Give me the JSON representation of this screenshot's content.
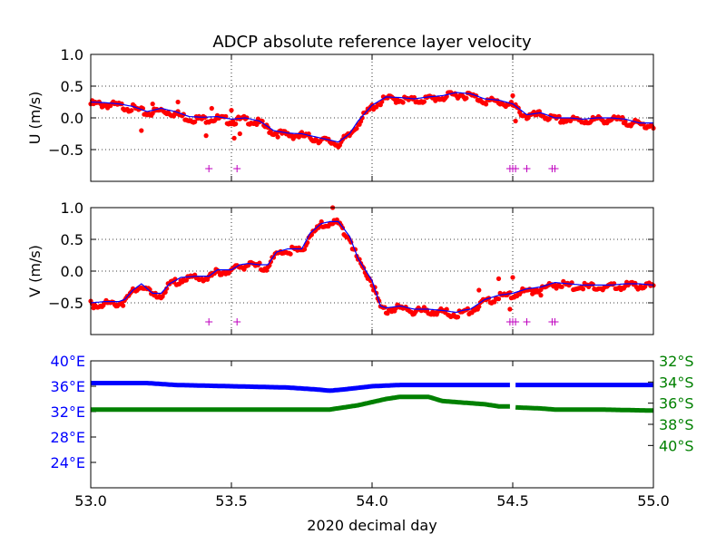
{
  "chart_data": {
    "type": "line",
    "title": "ADCP absolute reference layer velocity",
    "xlabel": "2020 decimal day",
    "xlim": [
      53.0,
      55.0
    ],
    "xticks": [
      53.0,
      53.5,
      54.0,
      54.5,
      55.0
    ],
    "xtick_labels": [
      "53.0",
      "53.5",
      "54.0",
      "54.5",
      "55.0"
    ],
    "vlines": [
      53.5,
      54.0,
      54.5
    ],
    "grid": "dotted",
    "colors": {
      "dots": "#ff0000",
      "line": "#0000ff",
      "flags": "#bf00bf",
      "lon": "#0000ff",
      "lat": "#008000"
    },
    "panels": [
      {
        "ylabel": "U (m/s)",
        "ylim": [
          -1.0,
          1.0
        ],
        "yticks": [
          1.0,
          0.5,
          0.0,
          -0.5
        ],
        "ytick_labels": [
          "1.0",
          "0.5",
          "0.0",
          "−0.5"
        ],
        "series": [
          {
            "x": [
              53.0,
              53.05,
              53.1,
              53.15,
              53.2,
              53.25,
              53.3,
              53.35,
              53.4,
              53.45,
              53.5,
              53.55,
              53.6,
              53.65,
              53.7,
              53.75,
              53.8,
              53.85,
              53.88,
              53.92,
              53.95,
              54.0,
              54.05,
              54.1,
              54.15,
              54.2,
              54.25,
              54.3,
              54.35,
              54.4,
              54.45,
              54.5,
              54.55,
              54.6,
              54.65,
              54.7,
              54.75,
              54.8,
              54.85,
              54.9,
              54.95,
              55.0
            ],
            "y": [
              0.25,
              0.24,
              0.22,
              0.18,
              0.1,
              0.15,
              0.1,
              0.02,
              0.01,
              0.02,
              -0.02,
              0.0,
              -0.05,
              -0.2,
              -0.24,
              -0.25,
              -0.3,
              -0.35,
              -0.38,
              -0.25,
              -0.05,
              0.2,
              0.33,
              0.32,
              0.3,
              0.33,
              0.35,
              0.4,
              0.38,
              0.3,
              0.28,
              0.22,
              0.05,
              0.08,
              0.0,
              0.0,
              -0.02,
              0.0,
              0.0,
              -0.02,
              -0.08,
              -0.08
            ]
          }
        ],
        "outliers": [
          {
            "x": 53.18,
            "y": -0.2
          },
          {
            "x": 53.22,
            "y": 0.22
          },
          {
            "x": 53.31,
            "y": 0.25
          },
          {
            "x": 53.41,
            "y": -0.28
          },
          {
            "x": 53.43,
            "y": 0.15
          },
          {
            "x": 53.5,
            "y": 0.12
          },
          {
            "x": 53.51,
            "y": -0.32
          },
          {
            "x": 53.53,
            "y": -0.25
          },
          {
            "x": 54.5,
            "y": 0.35
          },
          {
            "x": 54.51,
            "y": -0.05
          }
        ],
        "flags": [
          53.42,
          53.52,
          54.49,
          54.5,
          54.51,
          54.55,
          54.64,
          54.65
        ],
        "flag_y": -0.8
      },
      {
        "ylabel": "V (m/s)",
        "ylim": [
          -1.0,
          1.0
        ],
        "yticks": [
          1.0,
          0.5,
          0.0,
          -0.5
        ],
        "ytick_labels": [
          "1.0",
          "0.5",
          "0.0",
          "−0.5"
        ],
        "series": [
          {
            "x": [
              53.0,
              53.05,
              53.1,
              53.12,
              53.15,
              53.18,
              53.22,
              53.25,
              53.28,
              53.32,
              53.38,
              53.42,
              53.45,
              53.5,
              53.53,
              53.56,
              53.6,
              53.63,
              53.66,
              53.7,
              53.75,
              53.78,
              53.82,
              53.85,
              53.88,
              53.92,
              53.95,
              54.0,
              54.03,
              54.05,
              54.1,
              54.15,
              54.2,
              54.25,
              54.3,
              54.32,
              54.35,
              54.4,
              54.45,
              54.5,
              54.55,
              54.6,
              54.65,
              54.7,
              54.75,
              54.8,
              54.85,
              54.9,
              54.95,
              55.0
            ],
            "y": [
              -0.5,
              -0.48,
              -0.48,
              -0.45,
              -0.3,
              -0.2,
              -0.35,
              -0.35,
              -0.2,
              -0.1,
              -0.08,
              -0.08,
              0.02,
              0.02,
              0.1,
              0.12,
              0.1,
              0.1,
              0.3,
              0.35,
              0.35,
              0.6,
              0.75,
              0.78,
              0.78,
              0.55,
              0.2,
              -0.15,
              -0.55,
              -0.58,
              -0.55,
              -0.6,
              -0.6,
              -0.62,
              -0.65,
              -0.62,
              -0.6,
              -0.45,
              -0.38,
              -0.35,
              -0.28,
              -0.25,
              -0.18,
              -0.2,
              -0.22,
              -0.22,
              -0.22,
              -0.2,
              -0.2,
              -0.22
            ]
          }
        ],
        "outliers": [
          {
            "x": 53.86,
            "y": 1.0
          },
          {
            "x": 54.38,
            "y": -0.3
          },
          {
            "x": 54.45,
            "y": -0.12
          },
          {
            "x": 54.5,
            "y": -0.1
          },
          {
            "x": 54.49,
            "y": -0.6
          },
          {
            "x": 54.6,
            "y": -0.38
          }
        ],
        "flags": [
          53.42,
          53.52,
          54.49,
          54.5,
          54.51,
          54.55,
          54.64,
          54.65
        ],
        "flag_y": -0.8
      },
      {
        "ylabel_left": "",
        "ylim_left": [
          20,
          40
        ],
        "yticks_left": [
          40,
          36,
          32,
          28,
          24
        ],
        "ytick_labels_left": [
          "40°E",
          "36°E",
          "32°E",
          "28°E",
          "24°E"
        ],
        "ylim_right": [
          -44,
          -32
        ],
        "yticks_right": [
          -32,
          -34,
          -36,
          -38,
          -40
        ],
        "ytick_labels_right": [
          "32°S",
          "34°S",
          "36°S",
          "38°S",
          "40°S"
        ],
        "series": [
          {
            "axis": "left",
            "x": [
              53.0,
              53.2,
              53.3,
              53.5,
              53.6,
              53.7,
              53.8,
              53.85,
              53.9,
              54.0,
              54.1,
              54.3,
              54.49
            ],
            "y": [
              36.5,
              36.5,
              36.2,
              36.0,
              35.9,
              35.8,
              35.5,
              35.3,
              35.5,
              36.0,
              36.2,
              36.2,
              36.2
            ],
            "gap_after": 54.49
          },
          {
            "axis": "left",
            "x": [
              54.51,
              54.7,
              55.0
            ],
            "y": [
              36.2,
              36.2,
              36.2
            ]
          },
          {
            "axis": "right",
            "x": [
              53.0,
              53.1,
              53.2,
              53.3,
              53.5,
              53.7,
              53.85,
              53.95,
              54.05,
              54.1,
              54.2,
              54.25,
              54.3,
              54.4,
              54.45,
              54.49
            ],
            "y": [
              -36.6,
              -36.6,
              -36.6,
              -36.6,
              -36.6,
              -36.6,
              -36.6,
              -36.2,
              -35.6,
              -35.4,
              -35.4,
              -35.8,
              -35.9,
              -36.1,
              -36.3,
              -36.3
            ],
            "gap_after": 54.49
          },
          {
            "axis": "right",
            "x": [
              54.51,
              54.6,
              54.65,
              54.8,
              55.0
            ],
            "y": [
              -36.4,
              -36.5,
              -36.6,
              -36.6,
              -36.7
            ]
          }
        ]
      }
    ]
  }
}
